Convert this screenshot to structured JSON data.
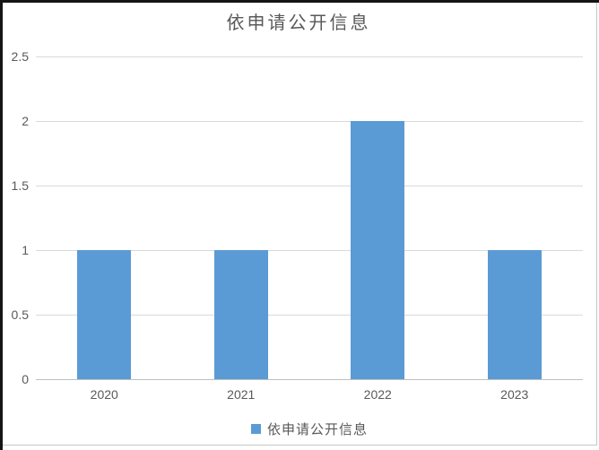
{
  "chart_data": {
    "type": "bar",
    "title": "依申请公开信息",
    "categories": [
      "2020",
      "2021",
      "2022",
      "2023"
    ],
    "series": [
      {
        "name": "依申请公开信息",
        "values": [
          1,
          1,
          2,
          1
        ]
      }
    ],
    "xlabel": "",
    "ylabel": "",
    "ylim": [
      0,
      2.5
    ],
    "yticks": [
      0,
      0.5,
      1,
      1.5,
      2,
      2.5
    ],
    "ytick_labels": [
      "0",
      "0.5",
      "1",
      "1.5",
      "2",
      "2.5"
    ],
    "grid": true,
    "legend_position": "bottom",
    "colors": {
      "bar": "#5b9bd5",
      "gridline": "#d9d9d9",
      "axis_line": "#bfbfbf",
      "text": "#595959",
      "frame": "#c6c6c6",
      "window_edge": "#151515"
    }
  },
  "legend": {
    "items": [
      {
        "label": "依申请公开信息",
        "color": "#5b9bd5"
      }
    ]
  }
}
